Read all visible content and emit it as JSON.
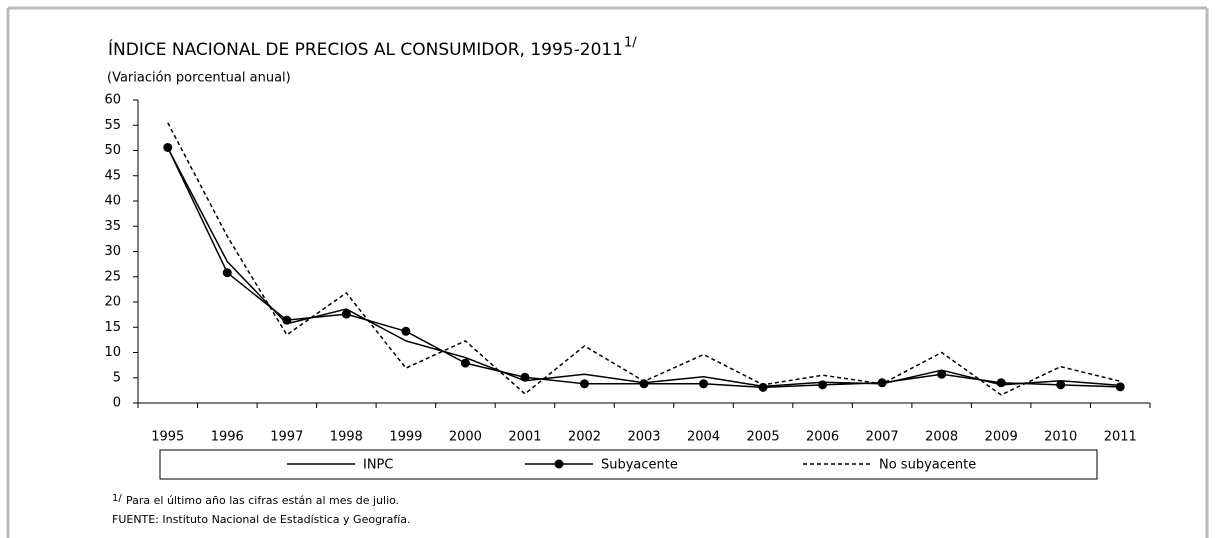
{
  "chart_data": {
    "type": "line",
    "title": "ÍNDICE NACIONAL DE PRECIOS AL CONSUMIDOR, 1995-2011",
    "title_note": "1/",
    "subtitle": "(Variación porcentual anual)",
    "categories": [
      "1995",
      "1996",
      "1997",
      "1998",
      "1999",
      "2000",
      "2001",
      "2002",
      "2003",
      "2004",
      "2005",
      "2006",
      "2007",
      "2008",
      "2009",
      "2010",
      "2011"
    ],
    "series": [
      {
        "name": "INPC",
        "color": "#000000",
        "style": "solid",
        "marker": "none",
        "values": [
          50.5,
          28.0,
          15.7,
          18.6,
          12.3,
          9.0,
          4.4,
          5.7,
          4.0,
          5.2,
          3.3,
          4.1,
          3.8,
          6.5,
          3.6,
          4.4,
          3.5
        ]
      },
      {
        "name": "Subyacente",
        "color": "#000000",
        "style": "solid",
        "marker": "circle",
        "values": [
          50.6,
          25.8,
          16.4,
          17.6,
          14.2,
          7.9,
          5.1,
          3.8,
          3.8,
          3.8,
          3.1,
          3.6,
          4.0,
          5.7,
          4.0,
          3.6,
          3.2
        ]
      },
      {
        "name": "No subyacente",
        "color": "#000000",
        "style": "dashed",
        "marker": "none",
        "values": [
          55.5,
          33.0,
          13.5,
          21.8,
          6.9,
          12.3,
          1.8,
          11.3,
          4.3,
          9.6,
          3.6,
          5.5,
          3.8,
          10.0,
          1.6,
          7.2,
          4.3
        ]
      }
    ],
    "ylim": [
      0,
      60
    ],
    "yticks": [
      0,
      5,
      10,
      15,
      20,
      25,
      30,
      35,
      40,
      45,
      50,
      55,
      60
    ],
    "grid": false,
    "legend": "bottom",
    "footnote_mark": "1/",
    "footnote": "Para el último año las cifras están al mes de julio.",
    "source": "FUENTE: Instituto Nacional de Estadística y Geografía."
  }
}
